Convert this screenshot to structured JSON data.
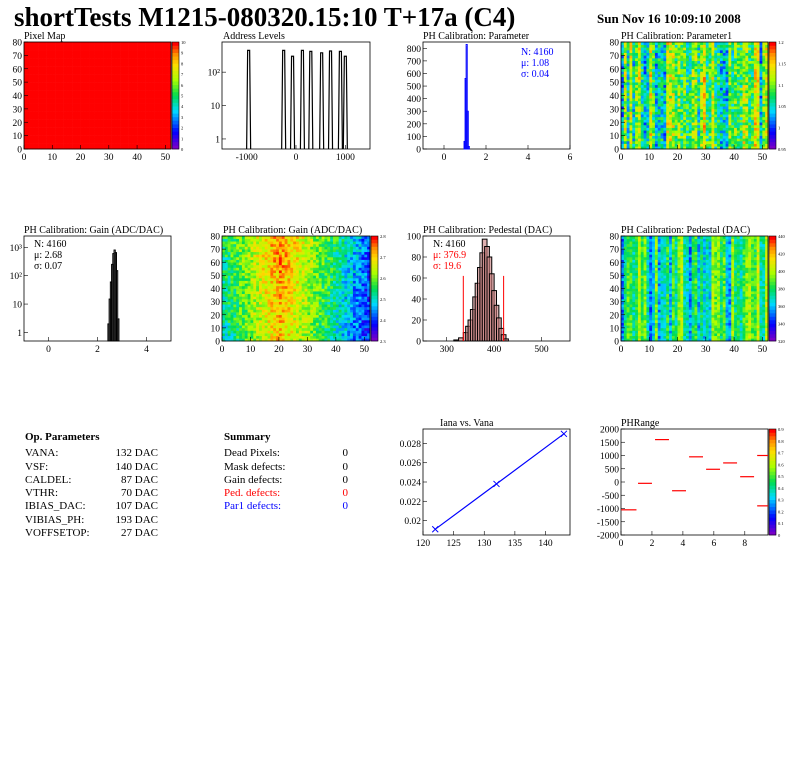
{
  "header": {
    "title": "shortTests M1215-080320.15:10 T+17a (C4)",
    "date": "Sun Nov 16 10:09:10 2008"
  },
  "colors": {
    "map_red": "#ff0000",
    "blue": "#0000ff",
    "red_text": "#ff0000",
    "hist_fill": "#c87c7c"
  },
  "chart_data": [
    {
      "id": "pixel_map",
      "type": "heatmap",
      "title": "Pixel Map",
      "xlim": [
        0,
        52
      ],
      "ylim": [
        0,
        80
      ],
      "x_ticks": [
        "0",
        "10",
        "20",
        "30",
        "40",
        "50"
      ],
      "y_ticks": [
        "0",
        "10",
        "20",
        "30",
        "40",
        "50",
        "60",
        "70",
        "80"
      ],
      "z_ticks": [
        "0",
        "1",
        "2",
        "3",
        "4",
        "5",
        "6",
        "7",
        "8",
        "9",
        "10"
      ],
      "uniform_value": 10
    },
    {
      "id": "address_levels",
      "type": "bar",
      "title": "Address Levels",
      "xlim": [
        -1500,
        1500
      ],
      "log_y": true,
      "x_ticks": [
        "-1000",
        "0",
        "1000"
      ],
      "y_ticks": [
        "1",
        "10",
        "10²"
      ],
      "peaks": [
        {
          "x": -960,
          "y": 450
        },
        {
          "x": -250,
          "y": 450
        },
        {
          "x": -70,
          "y": 300
        },
        {
          "x": 130,
          "y": 450
        },
        {
          "x": 300,
          "y": 420
        },
        {
          "x": 520,
          "y": 380
        },
        {
          "x": 700,
          "y": 430
        },
        {
          "x": 900,
          "y": 420
        },
        {
          "x": 1000,
          "y": 300
        }
      ]
    },
    {
      "id": "ph_cal_param",
      "type": "bar",
      "title": "PH Calibration: Parameter",
      "xlim": [
        -1,
        6
      ],
      "ylim": [
        0,
        850
      ],
      "x_ticks": [
        "0",
        "2",
        "4",
        "6"
      ],
      "y_ticks": [
        "0",
        "100",
        "200",
        "300",
        "400",
        "500",
        "600",
        "700",
        "800"
      ],
      "stats": {
        "n": "N: 4160",
        "mean": "μ: 1.08",
        "sigma": "σ: 0.04"
      },
      "bins": [
        {
          "x": 0.98,
          "y": 60
        },
        {
          "x": 1.03,
          "y": 560
        },
        {
          "x": 1.08,
          "y": 830
        },
        {
          "x": 1.13,
          "y": 300
        },
        {
          "x": 1.18,
          "y": 20
        }
      ]
    },
    {
      "id": "ph_cal_param1",
      "type": "heatmap",
      "title": "PH Calibration: Parameter1",
      "xlim": [
        0,
        52
      ],
      "ylim": [
        0,
        80
      ],
      "x_ticks": [
        "0",
        "10",
        "20",
        "30",
        "40",
        "50"
      ],
      "y_ticks": [
        "0",
        "10",
        "20",
        "30",
        "40",
        "50",
        "60",
        "70",
        "80"
      ],
      "z_ticks": [
        "0.95",
        "1",
        "1.05",
        "1.1",
        "1.15",
        "1.2"
      ],
      "zlim": [
        0.95,
        1.2
      ]
    },
    {
      "id": "gain_hist",
      "type": "bar",
      "title": "PH Calibration: Gain (ADC/DAC)",
      "xlim": [
        -1,
        5
      ],
      "log_y": true,
      "x_ticks": [
        "0",
        "2",
        "4"
      ],
      "y_ticks": [
        "1",
        "10",
        "10²",
        "10³"
      ],
      "stats": {
        "n": "N: 4160",
        "mean": "μ: 2.68",
        "sigma": "σ: 0.07"
      },
      "bins": [
        {
          "x": 2.45,
          "y": 2
        },
        {
          "x": 2.5,
          "y": 15
        },
        {
          "x": 2.55,
          "y": 60
        },
        {
          "x": 2.6,
          "y": 250
        },
        {
          "x": 2.65,
          "y": 600
        },
        {
          "x": 2.7,
          "y": 800
        },
        {
          "x": 2.75,
          "y": 650
        },
        {
          "x": 2.8,
          "y": 150
        },
        {
          "x": 2.85,
          "y": 3
        }
      ]
    },
    {
      "id": "gain_map",
      "type": "heatmap",
      "title": "PH Calibration: Gain (ADC/DAC)",
      "xlim": [
        0,
        52
      ],
      "ylim": [
        0,
        80
      ],
      "x_ticks": [
        "0",
        "10",
        "20",
        "30",
        "40",
        "50"
      ],
      "y_ticks": [
        "0",
        "10",
        "20",
        "30",
        "40",
        "50",
        "60",
        "70",
        "80"
      ],
      "z_ticks": [
        "2.3",
        "2.4",
        "2.5",
        "2.6",
        "2.7",
        "2.8"
      ],
      "zlim": [
        2.3,
        2.85
      ]
    },
    {
      "id": "pedestal_hist",
      "type": "bar",
      "title": "PH Calibration: Pedestal (DAC)",
      "xlim": [
        250,
        560
      ],
      "ylim": [
        0,
        100
      ],
      "x_ticks": [
        "300",
        "400",
        "500"
      ],
      "y_ticks": [
        "0",
        "20",
        "40",
        "60",
        "80",
        "100"
      ],
      "stats": {
        "n": "N: 4160",
        "mean": "μ: 376.9",
        "sigma": "σ: 19.6"
      },
      "cut_lines": [
        335,
        420
      ],
      "bins": [
        {
          "x": 320,
          "y": 1
        },
        {
          "x": 330,
          "y": 3
        },
        {
          "x": 340,
          "y": 8
        },
        {
          "x": 345,
          "y": 14
        },
        {
          "x": 350,
          "y": 20
        },
        {
          "x": 355,
          "y": 30
        },
        {
          "x": 360,
          "y": 42
        },
        {
          "x": 365,
          "y": 55
        },
        {
          "x": 370,
          "y": 70
        },
        {
          "x": 375,
          "y": 84
        },
        {
          "x": 380,
          "y": 97
        },
        {
          "x": 385,
          "y": 90
        },
        {
          "x": 390,
          "y": 80
        },
        {
          "x": 395,
          "y": 64
        },
        {
          "x": 400,
          "y": 48
        },
        {
          "x": 405,
          "y": 34
        },
        {
          "x": 410,
          "y": 22
        },
        {
          "x": 415,
          "y": 12
        },
        {
          "x": 420,
          "y": 6
        },
        {
          "x": 425,
          "y": 2
        }
      ]
    },
    {
      "id": "pedestal_map",
      "type": "heatmap",
      "title": "PH Calibration: Pedestal (DAC)",
      "xlim": [
        0,
        52
      ],
      "ylim": [
        0,
        80
      ],
      "x_ticks": [
        "0",
        "10",
        "20",
        "30",
        "40",
        "50"
      ],
      "y_ticks": [
        "0",
        "10",
        "20",
        "30",
        "40",
        "50",
        "60",
        "70",
        "80"
      ],
      "z_ticks": [
        "320",
        "340",
        "360",
        "380",
        "400",
        "420",
        "440"
      ],
      "zlim": [
        310,
        450
      ]
    },
    {
      "id": "iana_vana",
      "type": "line",
      "title": "Iana vs. Vana",
      "xlim": [
        120,
        144
      ],
      "ylim": [
        0.0185,
        0.0295
      ],
      "x_ticks": [
        "120",
        "125",
        "130",
        "135",
        "140"
      ],
      "y_ticks": [
        "0.02",
        "0.022",
        "0.024",
        "0.026",
        "0.028"
      ],
      "x": [
        122,
        132,
        143
      ],
      "y": [
        0.0191,
        0.0238,
        0.029
      ]
    },
    {
      "id": "phrange",
      "type": "scatter",
      "title": "PHRange",
      "xlim": [
        0,
        9.5
      ],
      "ylim": [
        -2000,
        2000
      ],
      "x_ticks": [
        "0",
        "2",
        "4",
        "6",
        "8"
      ],
      "y_ticks": [
        "-2000",
        "-1500",
        "-1000",
        "-500",
        "0",
        "500",
        "1000",
        "1500",
        "2000"
      ],
      "z_ticks": [
        "0",
        "0.1",
        "0.2",
        "0.3",
        "0.4",
        "0.5",
        "0.6",
        "0.7",
        "0.8",
        "0.9"
      ],
      "segments": [
        {
          "x0": 0,
          "x1": 1,
          "y": -1050
        },
        {
          "x0": 1.1,
          "x1": 2,
          "y": -50
        },
        {
          "x0": 2.2,
          "x1": 3.1,
          "y": 1600
        },
        {
          "x0": 3.3,
          "x1": 4.2,
          "y": -330
        },
        {
          "x0": 4.4,
          "x1": 5.3,
          "y": 950
        },
        {
          "x0": 5.5,
          "x1": 6.4,
          "y": 480
        },
        {
          "x0": 6.6,
          "x1": 7.5,
          "y": 720
        },
        {
          "x0": 7.7,
          "x1": 8.6,
          "y": 200
        },
        {
          "x0": 8.8,
          "x1": 9.5,
          "y": 1000
        },
        {
          "x0": 8.8,
          "x1": 9.5,
          "y": -900
        }
      ]
    }
  ],
  "op_parameters": {
    "title": "Op. Parameters",
    "rows": [
      {
        "name": "VANA:",
        "value": "132 DAC"
      },
      {
        "name": "VSF:",
        "value": "140 DAC"
      },
      {
        "name": "CALDEL:",
        "value": "87 DAC"
      },
      {
        "name": "VTHR:",
        "value": "70 DAC"
      },
      {
        "name": "IBIAS_DAC:",
        "value": "107 DAC"
      },
      {
        "name": "VIBIAS_PH:",
        "value": "193 DAC"
      },
      {
        "name": "VOFFSETOP:",
        "value": "27 DAC"
      }
    ]
  },
  "summary": {
    "title": "Summary",
    "rows": [
      {
        "name": "Dead Pixels:",
        "value": "0",
        "color": "#000000"
      },
      {
        "name": "Mask defects:",
        "value": "0",
        "color": "#000000"
      },
      {
        "name": "Gain defects:",
        "value": "0",
        "color": "#000000"
      },
      {
        "name": "Ped. defects:",
        "value": "0",
        "color": "#ff0000"
      },
      {
        "name": "Par1 defects:",
        "value": "0",
        "color": "#0000ff"
      }
    ]
  }
}
